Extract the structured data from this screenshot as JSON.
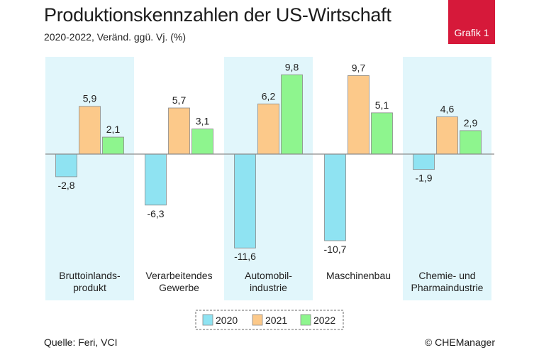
{
  "header": {
    "title": "Produktionskennzahlen der US-Wirtschaft",
    "subtitle": "2020-2022, Veränd. ggü. Vj. (%)",
    "badge": "Grafik 1"
  },
  "footer": {
    "source": "Quelle: Feri, VCI",
    "copyright": "© CHEManager"
  },
  "chart_data": {
    "type": "bar",
    "categories": [
      [
        "Bruttoinlands-",
        "produkt"
      ],
      [
        "Verarbeitendes",
        "Gewerbe"
      ],
      [
        "Automobil-",
        "industrie"
      ],
      [
        "Maschinenbau"
      ],
      [
        "Chemie- und",
        "Pharmaindustrie"
      ]
    ],
    "series": [
      {
        "name": "2020",
        "color": "#8fe3f2",
        "values": [
          -2.8,
          -6.3,
          -11.6,
          -10.7,
          -1.9
        ],
        "labels": [
          "-2,8",
          "-6,3",
          "-11,6",
          "-10,7",
          "-1,9"
        ]
      },
      {
        "name": "2021",
        "color": "#fcc98a",
        "values": [
          5.9,
          5.7,
          6.2,
          9.7,
          4.6
        ],
        "labels": [
          "5,9",
          "5,7",
          "6,2",
          "9,7",
          "4,6"
        ]
      },
      {
        "name": "2022",
        "color": "#8ef58e",
        "values": [
          2.1,
          3.1,
          9.8,
          5.1,
          2.9
        ],
        "labels": [
          "2,1",
          "3,1",
          "9,8",
          "5,1",
          "2,9"
        ]
      }
    ],
    "group_shading": [
      true,
      false,
      true,
      false,
      true
    ],
    "shading_color": "#e1f6fb",
    "legend_position": "bottom-center",
    "xlabel": "",
    "ylabel": ""
  }
}
